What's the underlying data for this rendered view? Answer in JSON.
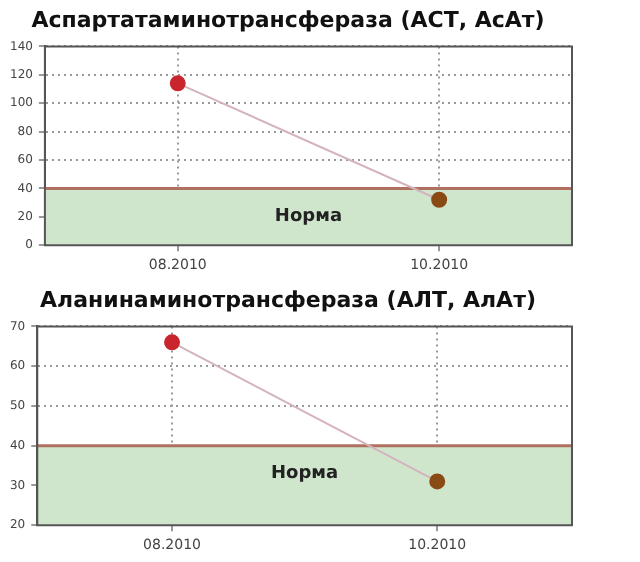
{
  "chart_data": [
    {
      "type": "line",
      "title": "Аспартатаминотрансфераза (АСТ, АсАт)",
      "x": [
        "2010-08",
        "2010-10"
      ],
      "xlim": [
        "2010-07",
        "2010-11"
      ],
      "xticks": [
        {
          "value": "2010-08",
          "label": "08.2010"
        },
        {
          "value": "2010-10",
          "label": "10.2010"
        }
      ],
      "ylim": [
        0,
        140
      ],
      "yticks": [
        0,
        20,
        40,
        60,
        80,
        100,
        120,
        140
      ],
      "grid": true,
      "marker": "circle",
      "series": [
        {
          "color": "#d4b4bc",
          "colors": [
            "#c8262c",
            "#8a4a14"
          ],
          "values": [
            114,
            32
          ]
        }
      ],
      "bands": [
        {
          "axis": "y",
          "from": 0,
          "to": 40,
          "label": "Норма",
          "color": "#cfe6cc"
        }
      ],
      "ref_lines": [
        {
          "axis": "y",
          "value": 40,
          "color": "#b07060"
        }
      ]
    },
    {
      "type": "line",
      "title": "Аланинаминотрансфераза (АЛТ, АлАт)",
      "x": [
        "2010-08",
        "2010-10"
      ],
      "xlim": [
        "2010-07",
        "2010-11"
      ],
      "xticks": [
        {
          "value": "2010-08",
          "label": "08.2010"
        },
        {
          "value": "2010-10",
          "label": "10.2010"
        }
      ],
      "ylim": [
        20,
        70
      ],
      "yticks": [
        20,
        30,
        40,
        50,
        60,
        70
      ],
      "grid": true,
      "marker": "circle",
      "series": [
        {
          "color": "#d4b4bc",
          "colors": [
            "#c8262c",
            "#8a4a14"
          ],
          "values": [
            66,
            31
          ]
        }
      ],
      "bands": [
        {
          "axis": "y",
          "from": 20,
          "to": 40,
          "label": "Норма",
          "color": "#cfe6cc"
        }
      ],
      "ref_lines": [
        {
          "axis": "y",
          "value": 40,
          "color": "#b07060"
        }
      ]
    }
  ]
}
